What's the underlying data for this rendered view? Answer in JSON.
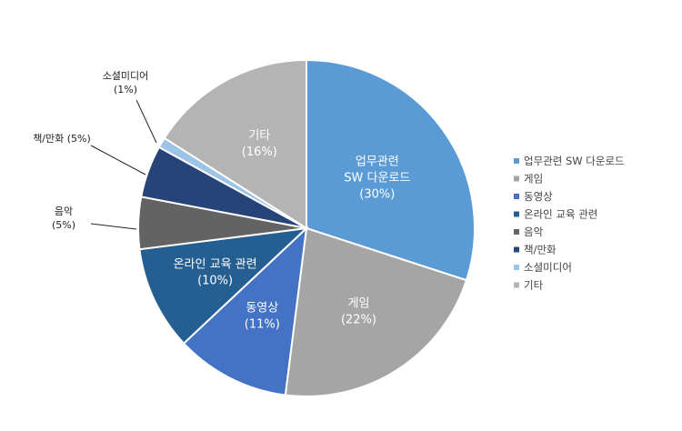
{
  "chart_data": {
    "type": "pie",
    "slices": [
      {
        "name": "업무관련 SW 다운로드",
        "value": 30,
        "color": "#5b9bd5",
        "label_lines": [
          "업무관련",
          "SW 다운로드",
          "(30%)"
        ],
        "label_color": "#ffffff",
        "label_inside": true
      },
      {
        "name": "게임",
        "value": 22,
        "color": "#a5a5a5",
        "label_lines": [
          "게임",
          "(22%)"
        ],
        "label_color": "#ffffff",
        "label_inside": true
      },
      {
        "name": "동영상",
        "value": 11,
        "color": "#4472c4",
        "label_lines": [
          "동영상",
          "(11%)"
        ],
        "label_color": "#ffffff",
        "label_inside": true
      },
      {
        "name": "온라인 교육 관련",
        "value": 10,
        "color": "#255e91",
        "label_lines": [
          "온라인 교육 관련",
          "(10%)"
        ],
        "label_color": "#ffffff",
        "label_inside": true
      },
      {
        "name": "음악",
        "value": 5,
        "color": "#636363",
        "label_lines": [
          "음악",
          "(5%)"
        ],
        "label_color": "#222222",
        "label_inside": false
      },
      {
        "name": "책/만화",
        "value": 5,
        "color": "#264478",
        "label_lines": [
          "책/만화 (5%)"
        ],
        "label_color": "#222222",
        "label_inside": false
      },
      {
        "name": "소셜미디어",
        "value": 1,
        "color": "#9dc3e6",
        "label_lines": [
          "소셜미디어",
          "(1%)"
        ],
        "label_color": "#222222",
        "label_inside": false
      },
      {
        "name": "기타",
        "value": 16,
        "color": "#b4b4b4",
        "label_lines": [
          "기타",
          "(16%)"
        ],
        "label_color": "#ffffff",
        "label_inside": true
      }
    ],
    "legend_position": "right",
    "legend": [
      "업무관련 SW 다운로드",
      "게임",
      "동영상",
      "온라인 교육 관련",
      "음악",
      "책/만화",
      "소셜미디어",
      "기타"
    ]
  }
}
